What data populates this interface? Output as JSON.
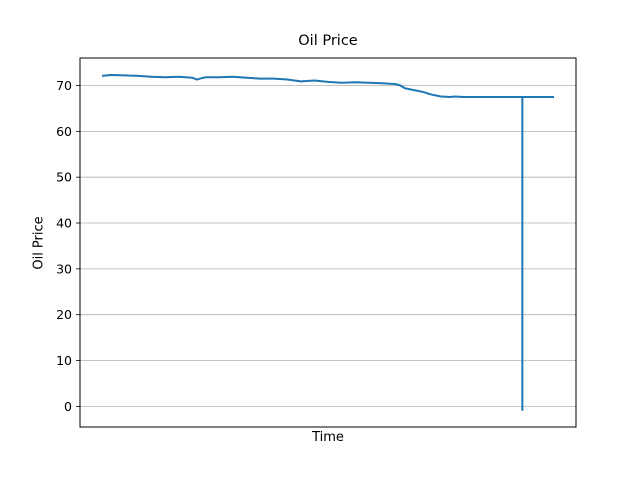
{
  "chart_data": {
    "type": "line",
    "title": "Oil Price",
    "xlabel": "Time",
    "ylabel": "Oil Price",
    "ylim": [
      -4.5,
      76
    ],
    "xlim": [
      0,
      1
    ],
    "grid": {
      "y": true,
      "x": false
    },
    "yticks": [
      0,
      10,
      20,
      30,
      40,
      50,
      60,
      70
    ],
    "xticks": [],
    "series": [
      {
        "color": "#1f77b4",
        "x": [
          0.0,
          0.02,
          0.05,
          0.08,
          0.11,
          0.14,
          0.17,
          0.2,
          0.21,
          0.22,
          0.23,
          0.26,
          0.29,
          0.32,
          0.35,
          0.38,
          0.41,
          0.44,
          0.47,
          0.5,
          0.53,
          0.56,
          0.59,
          0.62,
          0.65,
          0.66,
          0.67,
          0.69,
          0.71,
          0.73,
          0.75,
          0.77,
          0.78,
          0.8,
          0.84,
          0.88,
          0.9,
          0.93,
          0.93,
          0.93,
          0.94,
          0.97,
          1.0
        ],
        "y": [
          72.1,
          72.3,
          72.2,
          72.1,
          71.9,
          71.8,
          71.9,
          71.7,
          71.3,
          71.6,
          71.8,
          71.8,
          71.9,
          71.7,
          71.5,
          71.5,
          71.3,
          70.9,
          71.1,
          70.8,
          70.6,
          70.7,
          70.6,
          70.5,
          70.3,
          70.0,
          69.4,
          69.0,
          68.6,
          68.0,
          67.6,
          67.5,
          67.6,
          67.5,
          67.5,
          67.5,
          67.5,
          67.5,
          -0.8,
          67.5,
          67.5,
          67.5,
          67.5
        ]
      }
    ]
  }
}
